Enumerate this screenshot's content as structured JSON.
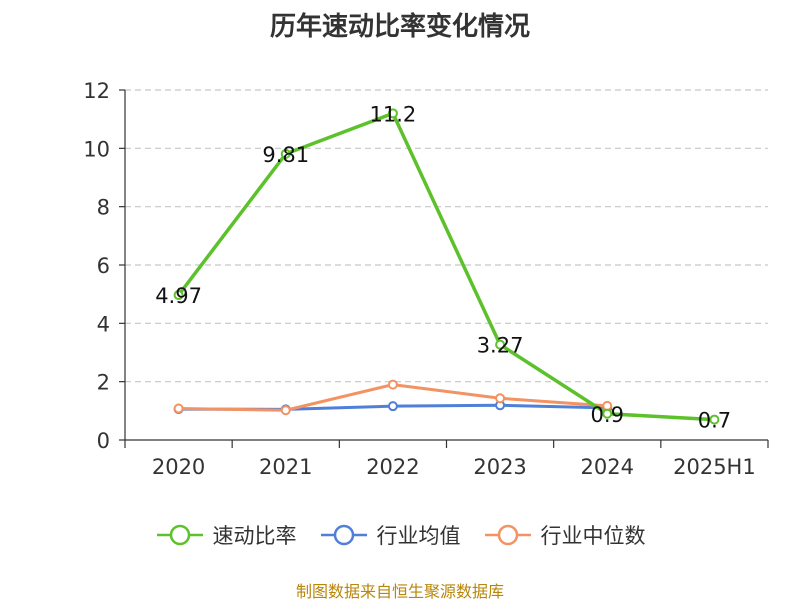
{
  "chart_data": {
    "type": "line",
    "title": "历年速动比率变化情况",
    "categories": [
      "2020",
      "2021",
      "2022",
      "2023",
      "2024",
      "2025H1"
    ],
    "ylim": [
      0,
      12
    ],
    "yticks": [
      0,
      2,
      4,
      6,
      8,
      10,
      12
    ],
    "grid": true,
    "legend_position": "bottom",
    "series": [
      {
        "name": "速动比率",
        "values": [
          4.97,
          9.81,
          11.2,
          3.27,
          0.9,
          0.7
        ],
        "color": "#5cc12b",
        "labels": [
          "4.97",
          "9.81",
          "11.2",
          "3.27",
          "0.9",
          "0.7"
        ]
      },
      {
        "name": "行业均值",
        "values": [
          1.06,
          1.05,
          1.16,
          1.19,
          1.1,
          null
        ],
        "color": "#4f7fd6"
      },
      {
        "name": "行业中位数",
        "values": [
          1.08,
          1.02,
          1.9,
          1.43,
          1.17,
          null
        ],
        "color": "#f39262"
      }
    ]
  },
  "legend": {
    "items": [
      "速动比率",
      "行业均值",
      "行业中位数"
    ]
  },
  "source": "制图数据来自恒生聚源数据库"
}
